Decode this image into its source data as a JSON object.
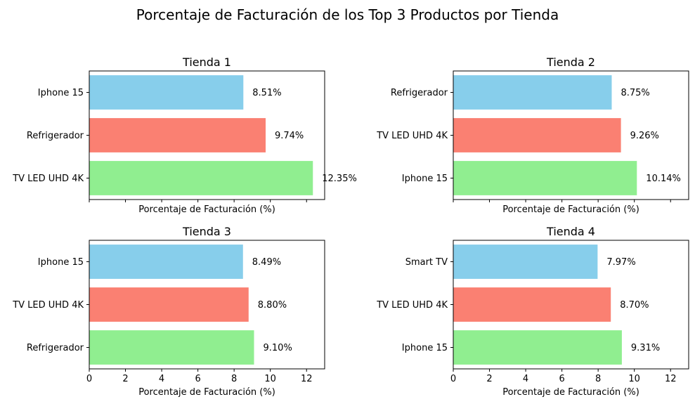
{
  "figure": {
    "title": "Porcentaje de Facturación de los Top 3 Productos por Tienda"
  },
  "colors": {
    "top": "#87ceeb",
    "middle": "#fa8072",
    "bottom": "#90ee90"
  },
  "chart_data": [
    {
      "type": "bar",
      "orientation": "horizontal",
      "title": "Tienda 1",
      "xlabel": "Porcentaje de Facturación (%)",
      "ylabel": "",
      "xlim": [
        0,
        13
      ],
      "xticks": [
        0,
        2,
        4,
        6,
        8,
        10,
        12
      ],
      "xtick_labels_shown": false,
      "grid": false,
      "categories": [
        "Iphone 15",
        "Refrigerador",
        "TV LED UHD 4K"
      ],
      "values": [
        8.51,
        9.74,
        12.35
      ],
      "labels": [
        "8.51%",
        "9.74%",
        "12.35%"
      ]
    },
    {
      "type": "bar",
      "orientation": "horizontal",
      "title": "Tienda 2",
      "xlabel": "Porcentaje de Facturación (%)",
      "ylabel": "",
      "xlim": [
        0,
        13
      ],
      "xticks": [
        0,
        2,
        4,
        6,
        8,
        10,
        12
      ],
      "xtick_labels_shown": false,
      "grid": false,
      "categories": [
        "Refrigerador",
        "TV LED UHD 4K",
        "Iphone 15"
      ],
      "values": [
        8.75,
        9.26,
        10.14
      ],
      "labels": [
        "8.75%",
        "9.26%",
        "10.14%"
      ]
    },
    {
      "type": "bar",
      "orientation": "horizontal",
      "title": "Tienda 3",
      "xlabel": "Porcentaje de Facturación (%)",
      "ylabel": "",
      "xlim": [
        0,
        13
      ],
      "xticks": [
        0,
        2,
        4,
        6,
        8,
        10,
        12
      ],
      "xtick_labels_shown": true,
      "grid": false,
      "categories": [
        "Iphone 15",
        "TV LED UHD 4K",
        "Refrigerador"
      ],
      "values": [
        8.49,
        8.8,
        9.1
      ],
      "labels": [
        "8.49%",
        "8.80%",
        "9.10%"
      ]
    },
    {
      "type": "bar",
      "orientation": "horizontal",
      "title": "Tienda 4",
      "xlabel": "Porcentaje de Facturación (%)",
      "ylabel": "",
      "xlim": [
        0,
        13
      ],
      "xticks": [
        0,
        2,
        4,
        6,
        8,
        10,
        12
      ],
      "xtick_labels_shown": true,
      "grid": false,
      "categories": [
        "Smart TV",
        "TV LED UHD 4K",
        "Iphone 15"
      ],
      "values": [
        7.97,
        8.7,
        9.31
      ],
      "labels": [
        "7.97%",
        "8.70%",
        "9.31%"
      ]
    }
  ]
}
